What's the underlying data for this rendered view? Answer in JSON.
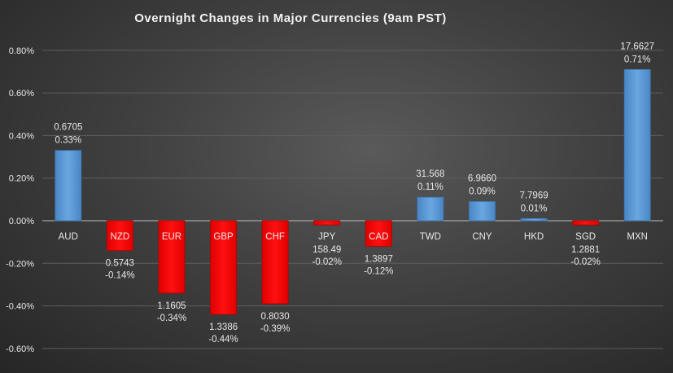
{
  "chart_data": {
    "type": "bar",
    "title": "Overnight Changes in Major Currencies (9am PST)",
    "xlabel": "",
    "ylabel": "",
    "ylim": [
      -0.6,
      0.8
    ],
    "yticks": [
      "0.80%",
      "0.60%",
      "0.40%",
      "0.20%",
      "0.00%",
      "-0.20%",
      "-0.40%",
      "-0.60%"
    ],
    "ytick_values": [
      0.8,
      0.6,
      0.4,
      0.2,
      0.0,
      -0.2,
      -0.4,
      -0.6
    ],
    "grid": true,
    "legend": "none",
    "categories": [
      "AUD",
      "NZD",
      "EUR",
      "GBP",
      "CHF",
      "JPY",
      "CAD",
      "TWD",
      "CNY",
      "HKD",
      "SGD",
      "MXN"
    ],
    "values": [
      0.33,
      -0.14,
      -0.34,
      -0.44,
      -0.39,
      -0.02,
      -0.12,
      0.11,
      0.09,
      0.01,
      -0.02,
      0.71
    ],
    "value_labels": [
      "0.33%",
      "-0.14%",
      "-0.34%",
      "-0.44%",
      "-0.39%",
      "-0.02%",
      "-0.12%",
      "0.11%",
      "0.09%",
      "0.01%",
      "-0.02%",
      "0.71%"
    ],
    "rates": [
      "0.6705",
      "0.5743",
      "1.1605",
      "1.3386",
      "0.8030",
      "158.49",
      "1.3897",
      "31.568",
      "6.9660",
      "7.7969",
      "1.2881",
      "17.6627"
    ],
    "colors": {
      "positive": "#5b9bd5",
      "negative": "#ff0000"
    }
  }
}
